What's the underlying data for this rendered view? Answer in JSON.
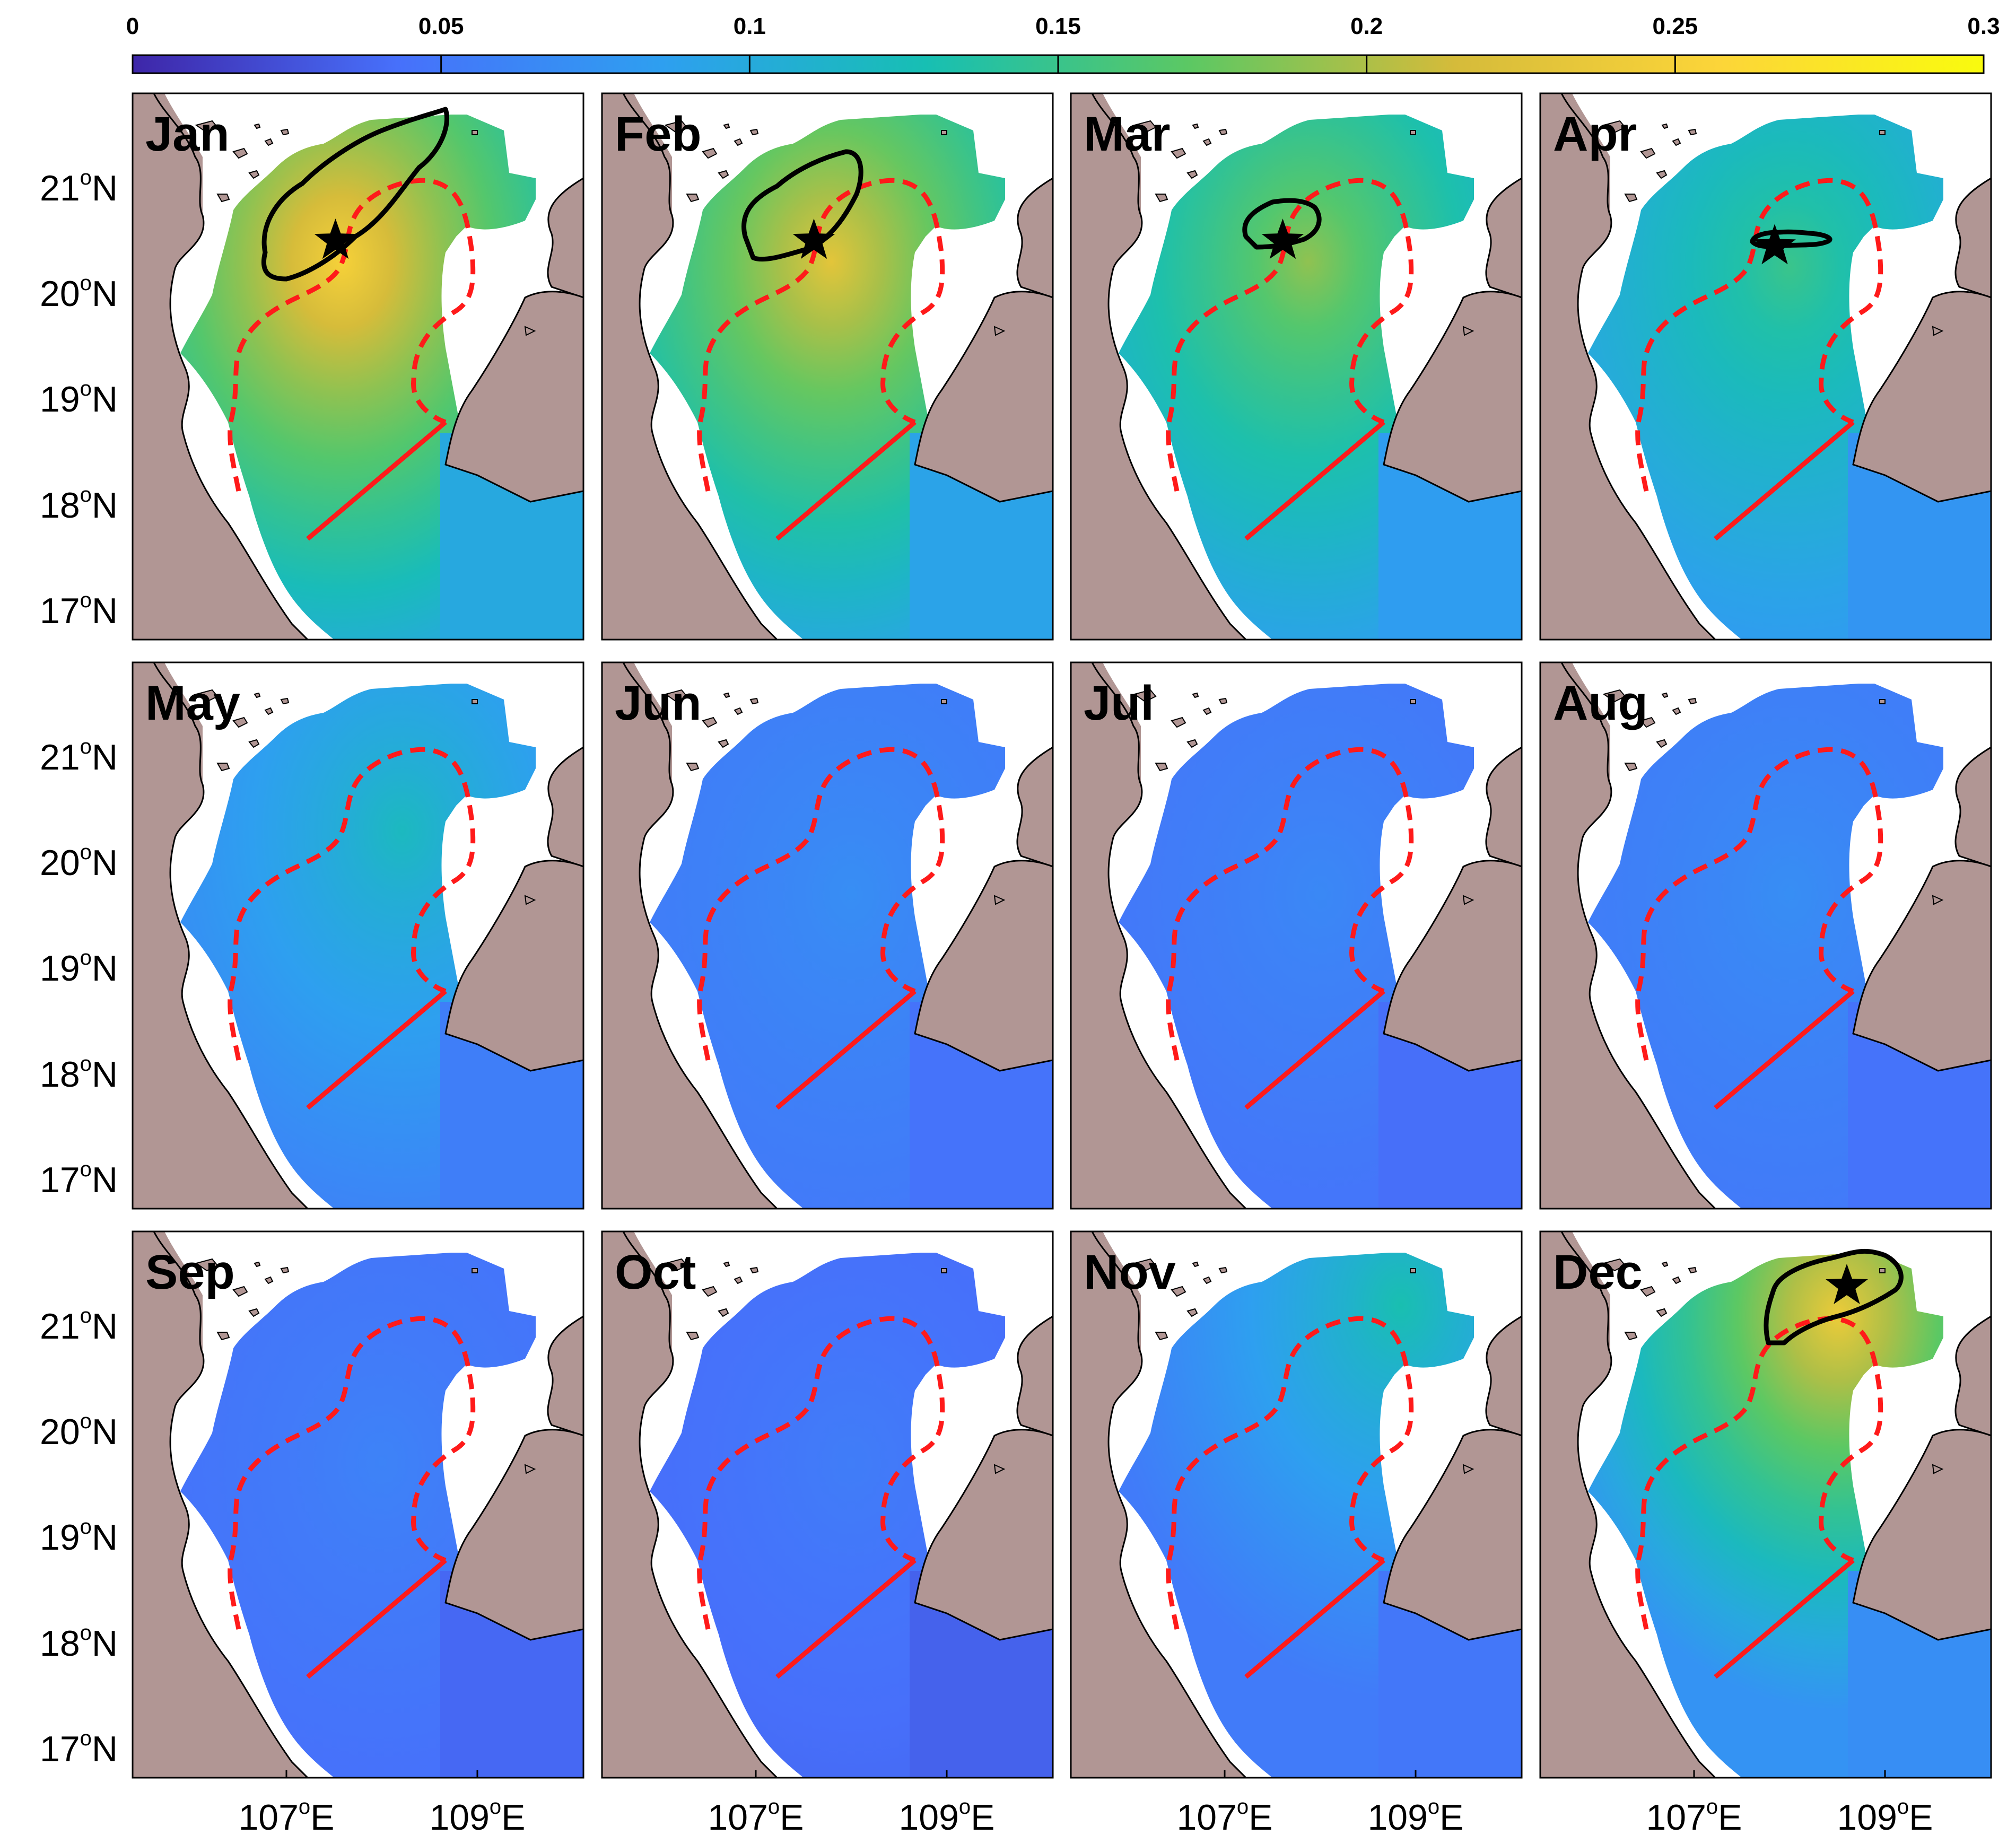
{
  "colorbar": {
    "ticks": [
      "0",
      "0.05",
      "0.1",
      "0.15",
      "0.2",
      "0.25",
      "0.3"
    ],
    "range": [
      0,
      0.3
    ],
    "colors": [
      "#3e26a8",
      "#4770fb",
      "#2e9ff0",
      "#17bfb3",
      "#5cc863",
      "#d5bb3a",
      "#fcd539",
      "#f9fb0e"
    ]
  },
  "axes": {
    "lat_labels": [
      {
        "deg": "21",
        "sup": "o",
        "hemi": "N"
      },
      {
        "deg": "20",
        "sup": "o",
        "hemi": "N"
      },
      {
        "deg": "19",
        "sup": "o",
        "hemi": "N"
      },
      {
        "deg": "18",
        "sup": "o",
        "hemi": "N"
      },
      {
        "deg": "17",
        "sup": "o",
        "hemi": "N"
      }
    ],
    "lon_labels": [
      {
        "deg": "107",
        "sup": "o",
        "hemi": "E"
      },
      {
        "deg": "109",
        "sup": "o",
        "hemi": "E"
      }
    ]
  },
  "panels": [
    {
      "month": "Jan",
      "level": 0.14,
      "hotspot": [
        0.4,
        0.28
      ],
      "hot": 0.25,
      "contour": "jan",
      "star": [
        0.45,
        0.27
      ]
    },
    {
      "month": "Feb",
      "level": 0.13,
      "hotspot": [
        0.45,
        0.28
      ],
      "hot": 0.23,
      "contour": "feb",
      "star": [
        0.47,
        0.27
      ]
    },
    {
      "month": "Mar",
      "level": 0.12,
      "hotspot": [
        0.47,
        0.28
      ],
      "hot": 0.19,
      "contour": "mar",
      "star": [
        0.47,
        0.27
      ]
    },
    {
      "month": "Apr",
      "level": 0.11,
      "hotspot": [
        0.5,
        0.29
      ],
      "hot": 0.15,
      "contour": "apr",
      "star": [
        0.52,
        0.28
      ]
    },
    {
      "month": "May",
      "level": 0.08,
      "hotspot": [
        0.55,
        0.28
      ],
      "hot": 0.12,
      "contour": null,
      "star": null
    },
    {
      "month": "Jun",
      "level": 0.065,
      "hotspot": [
        0.5,
        0.4
      ],
      "hot": 0.07,
      "contour": null,
      "star": null
    },
    {
      "month": "Jul",
      "level": 0.06,
      "hotspot": [
        0.5,
        0.4
      ],
      "hot": 0.065,
      "contour": null,
      "star": null
    },
    {
      "month": "Aug",
      "level": 0.065,
      "hotspot": [
        0.5,
        0.4
      ],
      "hot": 0.07,
      "contour": null,
      "star": null
    },
    {
      "month": "Sep",
      "level": 0.055,
      "hotspot": [
        0.5,
        0.4
      ],
      "hot": 0.06,
      "contour": null,
      "star": null
    },
    {
      "month": "Oct",
      "level": 0.05,
      "hotspot": [
        0.5,
        0.4
      ],
      "hot": 0.055,
      "contour": null,
      "star": null
    },
    {
      "month": "Nov",
      "level": 0.07,
      "hotspot": [
        0.7,
        0.1
      ],
      "hot": 0.13,
      "contour": null,
      "star": null
    },
    {
      "month": "Dec",
      "level": 0.1,
      "hotspot": [
        0.62,
        0.12
      ],
      "hot": 0.24,
      "contour": "dec",
      "star": [
        0.68,
        0.1
      ]
    }
  ]
}
